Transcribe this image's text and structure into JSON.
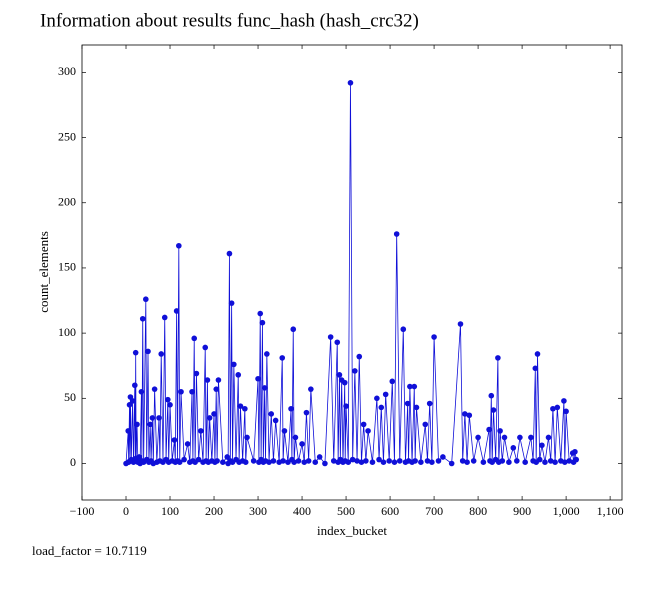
{
  "chart_data": {
    "type": "line",
    "title": "Information about results func_hash (hash_crc32)",
    "x_label": "index_bucket",
    "y_label": "count_elements",
    "footer": "load_factor = 10.7119",
    "color": "#1010d8",
    "markers": true,
    "xlim": [
      -100,
      1127
    ],
    "ylim": [
      -28,
      321
    ],
    "xticks": [
      {
        "value": -100,
        "label": "−100"
      },
      0,
      100,
      200,
      300,
      400,
      500,
      600,
      700,
      800,
      900,
      {
        "value": 1000,
        "label": "1,000"
      },
      {
        "value": 1100,
        "label": "1,100"
      }
    ],
    "yticks": [
      0,
      50,
      100,
      150,
      200,
      250,
      300
    ],
    "x": [
      0,
      5,
      6,
      8,
      9,
      10,
      12,
      15,
      17,
      20,
      21,
      22,
      23,
      25,
      27,
      30,
      32,
      35,
      36,
      38,
      40,
      45,
      47,
      50,
      52,
      55,
      57,
      60,
      62,
      65,
      70,
      75,
      77,
      80,
      84,
      88,
      91,
      95,
      97,
      100,
      105,
      110,
      112,
      115,
      117,
      120,
      122,
      125,
      132,
      140,
      145,
      150,
      152,
      155,
      157,
      160,
      165,
      170,
      175,
      180,
      182,
      185,
      187,
      190,
      195,
      200,
      202,
      205,
      207,
      210,
      220,
      230,
      232,
      235,
      237,
      240,
      242,
      245,
      250,
      255,
      257,
      260,
      265,
      270,
      272,
      275,
      290,
      300,
      302,
      305,
      307,
      310,
      312,
      315,
      317,
      320,
      325,
      330,
      335,
      340,
      348,
      355,
      357,
      360,
      368,
      375,
      377,
      380,
      382,
      385,
      392,
      400,
      405,
      410,
      415,
      420,
      430,
      440,
      452,
      465,
      472,
      480,
      482,
      485,
      487,
      490,
      493,
      497,
      498,
      500,
      505,
      510,
      515,
      520,
      525,
      530,
      535,
      540,
      545,
      550,
      560,
      570,
      575,
      580,
      585,
      590,
      598,
      605,
      610,
      615,
      622,
      630,
      635,
      640,
      642,
      645,
      650,
      655,
      657,
      660,
      670,
      680,
      685,
      690,
      695,
      700,
      710,
      720,
      740,
      760,
      765,
      770,
      775,
      780,
      790,
      800,
      812,
      825,
      827,
      830,
      832,
      835,
      840,
      845,
      847,
      850,
      855,
      860,
      870,
      880,
      888,
      895,
      907,
      920,
      925,
      930,
      932,
      935,
      940,
      945,
      952,
      960,
      965,
      970,
      975,
      980,
      988,
      995,
      997,
      1000,
      1007,
      1015,
      1017,
      1020,
      1023
    ],
    "values": [
      0,
      25,
      1,
      45,
      2,
      51,
      3,
      48,
      1,
      60,
      2,
      85,
      4,
      30,
      1,
      5,
      0,
      55,
      2,
      111,
      1,
      126,
      3,
      86,
      1,
      30,
      2,
      35,
      0,
      57,
      1,
      35,
      2,
      84,
      1,
      112,
      3,
      49,
      1,
      45,
      2,
      18,
      1,
      117,
      2,
      167,
      1,
      55,
      3,
      15,
      1,
      55,
      2,
      96,
      1,
      69,
      3,
      25,
      1,
      89,
      2,
      64,
      1,
      35,
      2,
      38,
      1,
      57,
      2,
      64,
      1,
      5,
      0,
      161,
      2,
      123,
      1,
      76,
      3,
      68,
      1,
      44,
      2,
      42,
      1,
      20,
      2,
      65,
      1,
      115,
      3,
      108,
      1,
      58,
      2,
      84,
      1,
      38,
      2,
      33,
      1,
      81,
      2,
      25,
      1,
      42,
      3,
      103,
      1,
      20,
      2,
      15,
      1,
      39,
      2,
      57,
      1,
      5,
      0,
      97,
      2,
      93,
      1,
      68,
      3,
      64,
      1,
      62,
      2,
      44,
      1,
      292,
      3,
      71,
      2,
      82,
      1,
      30,
      2,
      25,
      1,
      50,
      3,
      43,
      1,
      53,
      2,
      63,
      1,
      176,
      2,
      103,
      1,
      46,
      2,
      59,
      1,
      59,
      2,
      43,
      1,
      30,
      2,
      46,
      1,
      97,
      2,
      5,
      0,
      107,
      2,
      38,
      1,
      37,
      2,
      20,
      1,
      26,
      2,
      52,
      1,
      41,
      3,
      81,
      1,
      25,
      2,
      20,
      1,
      12,
      2,
      20,
      1,
      20,
      2,
      73,
      1,
      84,
      3,
      14,
      1,
      20,
      2,
      42,
      1,
      43,
      2,
      48,
      1,
      40,
      2,
      8,
      1,
      9,
      3
    ]
  }
}
